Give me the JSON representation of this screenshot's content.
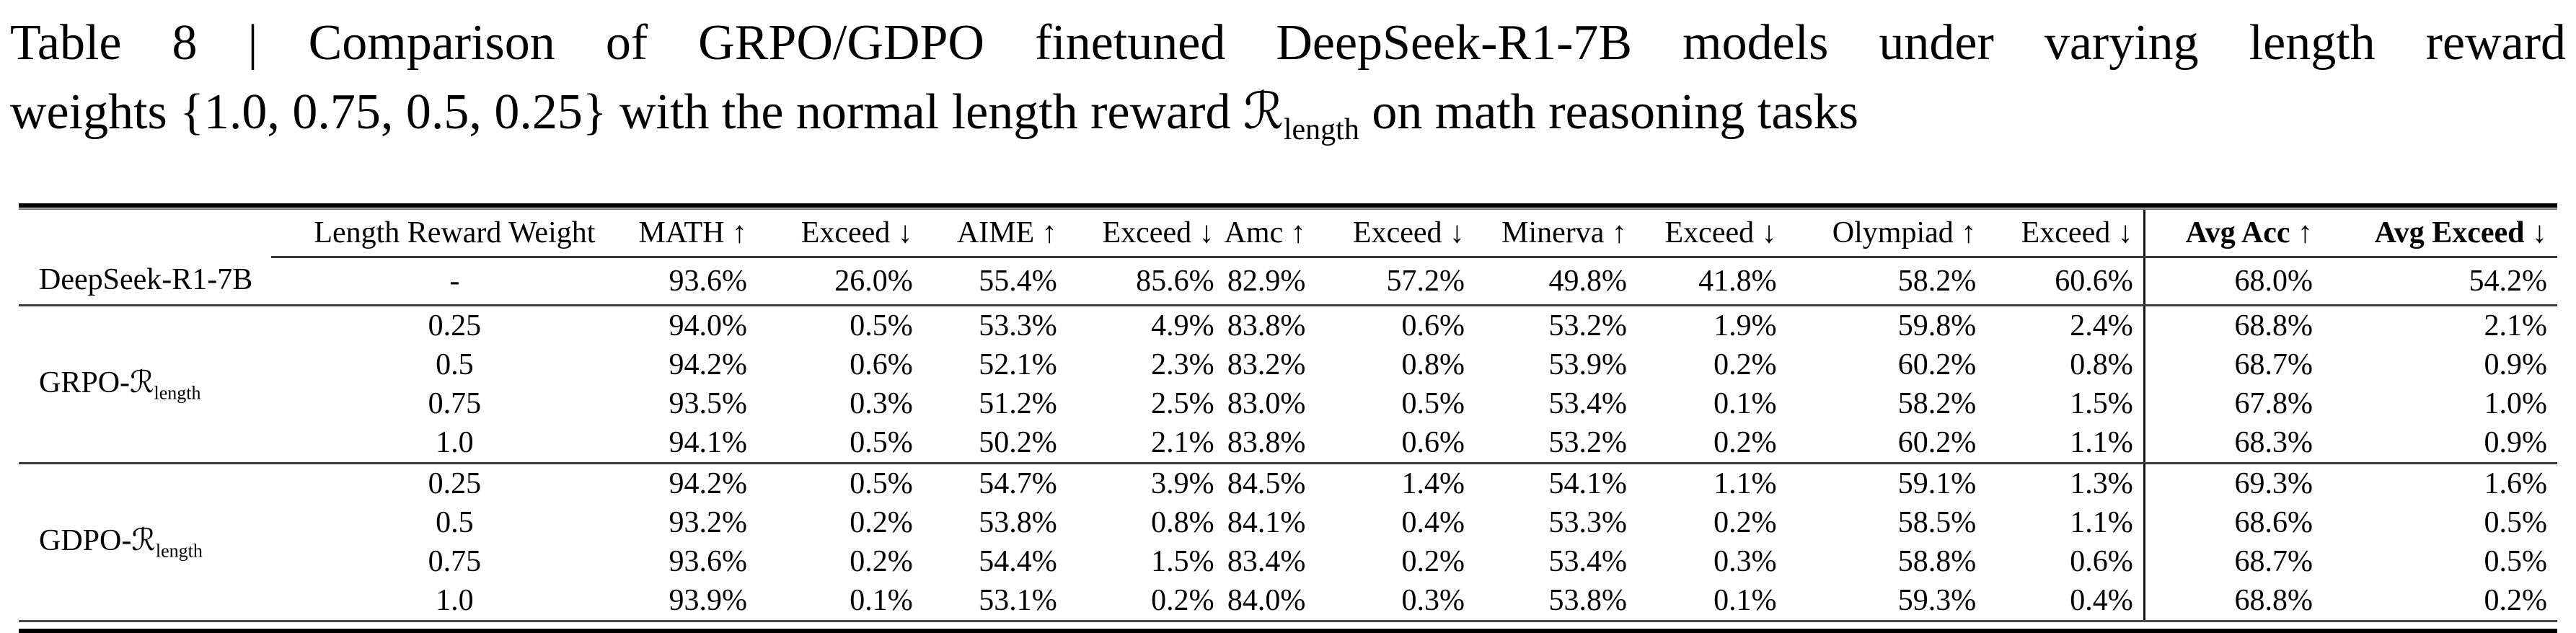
{
  "title": {
    "line1": "Table 8 | Comparison of GRPO/GDPO finetuned DeepSeek-R1-7B models under varying length reward",
    "line2_prefix": "weights {1.0, 0.75, 0.5, 0.25} with the normal length reward ",
    "reward_symbol": "ℛ",
    "reward_subscript": "length",
    "line2_suffix": " on math reasoning tasks"
  },
  "table": {
    "header": {
      "cells": [
        "Length Reward Weight",
        "MATH ↑",
        "Exceed ↓",
        "AIME ↑",
        "Exceed ↓",
        "Amc ↑",
        "Exceed ↓",
        "Minerva ↑",
        "Exceed ↓",
        "Olympiad ↑",
        "Exceed ↓",
        "Avg Acc ↑",
        "Avg Exceed ↓"
      ]
    },
    "groups": [
      {
        "model_prefix": "DeepSeek-R1-7B",
        "model_symbol": "",
        "model_subscript": "",
        "rows": [
          {
            "weight": "-",
            "values": [
              "93.6%",
              "26.0%",
              "55.4%",
              "85.6%",
              "82.9%",
              "57.2%",
              "49.8%",
              "41.8%",
              "58.2%",
              "60.6%",
              "68.0%",
              "54.2%"
            ]
          }
        ]
      },
      {
        "model_prefix": "GRPO-",
        "model_symbol": "ℛ",
        "model_subscript": "length",
        "rows": [
          {
            "weight": "0.25",
            "values": [
              "94.0%",
              "0.5%",
              "53.3%",
              "4.9%",
              "83.8%",
              "0.6%",
              "53.2%",
              "1.9%",
              "59.8%",
              "2.4%",
              "68.8%",
              "2.1%"
            ]
          },
          {
            "weight": "0.5",
            "values": [
              "94.2%",
              "0.6%",
              "52.1%",
              "2.3%",
              "83.2%",
              "0.8%",
              "53.9%",
              "0.2%",
              "60.2%",
              "0.8%",
              "68.7%",
              "0.9%"
            ]
          },
          {
            "weight": "0.75",
            "values": [
              "93.5%",
              "0.3%",
              "51.2%",
              "2.5%",
              "83.0%",
              "0.5%",
              "53.4%",
              "0.1%",
              "58.2%",
              "1.5%",
              "67.8%",
              "1.0%"
            ]
          },
          {
            "weight": "1.0",
            "values": [
              "94.1%",
              "0.5%",
              "50.2%",
              "2.1%",
              "83.8%",
              "0.6%",
              "53.2%",
              "0.2%",
              "60.2%",
              "1.1%",
              "68.3%",
              "0.9%"
            ]
          }
        ]
      },
      {
        "model_prefix": "GDPO-",
        "model_symbol": "ℛ",
        "model_subscript": "length",
        "rows": [
          {
            "weight": "0.25",
            "values": [
              "94.2%",
              "0.5%",
              "54.7%",
              "3.9%",
              "84.5%",
              "1.4%",
              "54.1%",
              "1.1%",
              "59.1%",
              "1.3%",
              "69.3%",
              "1.6%"
            ]
          },
          {
            "weight": "0.5",
            "values": [
              "93.2%",
              "0.2%",
              "53.8%",
              "0.8%",
              "84.1%",
              "0.4%",
              "53.3%",
              "0.2%",
              "58.5%",
              "1.1%",
              "68.6%",
              "0.5%"
            ]
          },
          {
            "weight": "0.75",
            "values": [
              "93.6%",
              "0.2%",
              "54.4%",
              "1.5%",
              "83.4%",
              "0.2%",
              "53.4%",
              "0.3%",
              "58.8%",
              "0.6%",
              "68.7%",
              "0.5%"
            ]
          },
          {
            "weight": "1.0",
            "values": [
              "93.9%",
              "0.1%",
              "53.1%",
              "0.2%",
              "84.0%",
              "0.3%",
              "53.8%",
              "0.1%",
              "59.3%",
              "0.4%",
              "68.8%",
              "0.2%"
            ]
          }
        ]
      }
    ]
  }
}
